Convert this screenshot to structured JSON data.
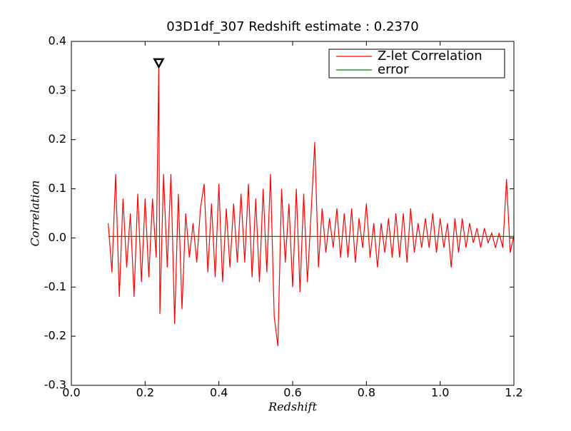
{
  "chart_data": {
    "type": "line",
    "title": "03D1df_307 Redshift estimate : 0.2370",
    "xlabel": "Redshift",
    "ylabel": "Correlation",
    "xlim": [
      0.0,
      1.2
    ],
    "ylim": [
      -0.3,
      0.4
    ],
    "xticks": [
      {
        "value": 0,
        "label": "0.0"
      },
      0.2,
      0.4,
      0.6,
      0.8,
      {
        "value": 1,
        "label": "1.0"
      },
      1.2
    ],
    "yticks": [
      -0.3,
      -0.2,
      -0.1,
      {
        "value": 0,
        "label": "0.0"
      },
      0.1,
      0.2,
      0.3,
      0.4
    ],
    "legend": "upper right",
    "x": [
      0.1,
      0.11,
      0.12,
      0.13,
      0.14,
      0.15,
      0.16,
      0.17,
      0.18,
      0.19,
      0.2,
      0.21,
      0.22,
      0.23,
      0.237,
      0.24,
      0.25,
      0.26,
      0.27,
      0.28,
      0.29,
      0.3,
      0.31,
      0.32,
      0.33,
      0.34,
      0.35,
      0.36,
      0.37,
      0.38,
      0.39,
      0.4,
      0.41,
      0.42,
      0.43,
      0.44,
      0.45,
      0.46,
      0.47,
      0.48,
      0.49,
      0.5,
      0.51,
      0.52,
      0.53,
      0.54,
      0.55,
      0.56,
      0.57,
      0.58,
      0.59,
      0.6,
      0.61,
      0.62,
      0.63,
      0.64,
      0.65,
      0.66,
      0.67,
      0.68,
      0.69,
      0.7,
      0.71,
      0.72,
      0.73,
      0.74,
      0.75,
      0.76,
      0.77,
      0.78,
      0.79,
      0.8,
      0.81,
      0.82,
      0.83,
      0.84,
      0.85,
      0.86,
      0.87,
      0.88,
      0.89,
      0.9,
      0.91,
      0.92,
      0.93,
      0.94,
      0.95,
      0.96,
      0.97,
      0.98,
      0.99,
      1.0,
      1.01,
      1.02,
      1.03,
      1.04,
      1.05,
      1.06,
      1.07,
      1.08,
      1.09,
      1.1,
      1.11,
      1.12,
      1.13,
      1.14,
      1.15,
      1.16,
      1.17,
      1.18,
      1.19,
      1.2
    ],
    "series": [
      {
        "name": "Z-let Correlation",
        "color": "#ff0000",
        "values": [
          0.03,
          -0.07,
          0.13,
          -0.12,
          0.08,
          -0.06,
          0.05,
          -0.12,
          0.09,
          -0.09,
          0.08,
          -0.08,
          0.08,
          -0.04,
          0.345,
          -0.155,
          0.13,
          -0.06,
          0.13,
          -0.175,
          0.09,
          -0.145,
          0.05,
          -0.04,
          0.03,
          -0.05,
          0.06,
          0.11,
          -0.07,
          0.07,
          -0.08,
          0.11,
          -0.09,
          0.06,
          -0.06,
          0.07,
          -0.05,
          0.09,
          -0.05,
          0.11,
          -0.08,
          0.08,
          -0.09,
          0.1,
          -0.07,
          0.13,
          -0.16,
          -0.22,
          0.1,
          -0.05,
          0.07,
          -0.1,
          0.1,
          -0.11,
          0.09,
          -0.09,
          0.05,
          0.195,
          -0.06,
          0.06,
          -0.03,
          0.04,
          -0.02,
          0.06,
          -0.04,
          0.05,
          -0.04,
          0.06,
          -0.05,
          0.04,
          -0.02,
          0.07,
          -0.04,
          0.03,
          -0.06,
          0.03,
          -0.03,
          0.04,
          -0.04,
          0.05,
          -0.04,
          0.05,
          -0.05,
          0.06,
          -0.03,
          0.03,
          -0.02,
          0.04,
          -0.02,
          0.05,
          -0.03,
          0.04,
          -0.02,
          0.03,
          -0.06,
          0.04,
          -0.03,
          0.04,
          -0.02,
          0.03,
          -0.01,
          0.02,
          -0.02,
          0.02,
          -0.01,
          0.01,
          -0.02,
          0.01,
          -0.02,
          0.12,
          -0.03,
          0.005
        ]
      },
      {
        "name": "error",
        "color": "#008000",
        "x": [
          0.1,
          1.2
        ],
        "values": [
          0.003,
          0.003
        ]
      }
    ],
    "marker": {
      "x": 0.237,
      "y": 0.345
    }
  }
}
